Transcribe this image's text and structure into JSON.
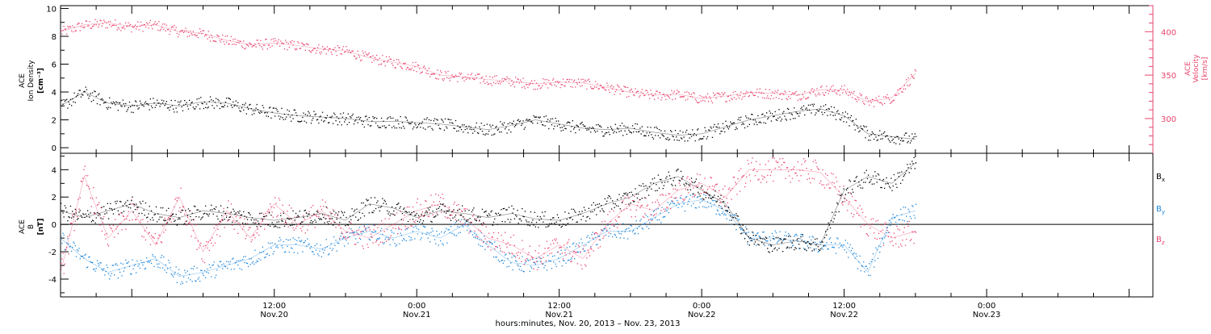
{
  "colors": {
    "density": "#000000",
    "velocity": "#e8446d",
    "bx": "#000000",
    "by": "#1b86dc",
    "bz": "#e8446d"
  },
  "chart_data": [
    {
      "type": "scatter",
      "panel": "top",
      "ylabel_left": [
        "ACE",
        "Ion Density",
        "[cm⁻³]"
      ],
      "ylabel_right": [
        "ACE",
        "Velocity",
        "[km/s]"
      ],
      "ylim_left": [
        -0.4,
        10.2
      ],
      "ylim_right": [
        260,
        430
      ],
      "left_ticks": [
        "0",
        "2",
        "4",
        "6",
        "8",
        "10"
      ],
      "left_tick_values": [
        0,
        2,
        4,
        6,
        8,
        10
      ],
      "right_ticks": [
        "300",
        "350",
        "400"
      ],
      "right_tick_values": [
        300,
        350,
        400
      ],
      "series": [
        {
          "key": "density",
          "x": [
            0,
            2,
            4,
            6,
            8,
            10,
            12,
            14,
            16,
            18,
            20,
            22,
            24,
            26,
            28,
            30,
            32,
            34,
            36,
            38,
            40,
            42,
            44,
            46,
            48,
            50,
            52,
            54,
            56,
            58,
            60,
            62,
            64,
            66,
            68,
            70,
            72
          ],
          "values": [
            3.0,
            4.0,
            3.2,
            3.0,
            3.2,
            3.0,
            3.3,
            3.2,
            2.8,
            2.5,
            2.3,
            2.2,
            2.1,
            1.9,
            1.9,
            1.8,
            1.7,
            1.5,
            1.3,
            1.6,
            2.0,
            1.7,
            1.4,
            1.3,
            1.4,
            1.1,
            0.9,
            1.0,
            1.5,
            2.0,
            2.3,
            2.6,
            2.8,
            2.3,
            1.0,
            0.8,
            0.6
          ]
        },
        {
          "key": "velocity",
          "x": [
            0,
            2,
            4,
            6,
            8,
            10,
            12,
            14,
            16,
            18,
            20,
            22,
            24,
            26,
            28,
            30,
            32,
            34,
            36,
            38,
            40,
            42,
            44,
            46,
            48,
            50,
            52,
            54,
            56,
            58,
            60,
            62,
            64,
            66,
            68,
            70,
            72
          ],
          "values": [
            400,
            408,
            410,
            406,
            408,
            400,
            398,
            390,
            385,
            387,
            384,
            380,
            378,
            370,
            365,
            360,
            350,
            348,
            345,
            343,
            340,
            342,
            341,
            336,
            330,
            327,
            328,
            323,
            326,
            330,
            329,
            327,
            333,
            333,
            319,
            324,
            352
          ]
        }
      ]
    },
    {
      "type": "scatter",
      "panel": "bottom",
      "ylabel": [
        "ACE",
        "B",
        "[nT]"
      ],
      "ylim": [
        -5.3,
        5.2
      ],
      "ticks": [
        "-4",
        "-2",
        "0",
        "2",
        "4"
      ],
      "tick_values": [
        -4,
        -2,
        0,
        2,
        4
      ],
      "series": [
        {
          "key": "bx",
          "legend": "B",
          "sub": "x",
          "x": [
            0,
            2,
            4,
            6,
            8,
            10,
            12,
            14,
            16,
            18,
            20,
            22,
            24,
            26,
            28,
            30,
            32,
            34,
            36,
            38,
            40,
            42,
            44,
            46,
            48,
            50,
            52,
            54,
            56,
            58,
            60,
            62,
            64,
            66,
            68,
            70,
            72
          ],
          "values": [
            1.0,
            0.5,
            1.0,
            1.5,
            0.8,
            0.5,
            1.0,
            0.8,
            0.5,
            0.3,
            0.5,
            0.8,
            0.3,
            1.5,
            1.2,
            0.5,
            1.0,
            0.8,
            0.5,
            0.8,
            0.4,
            0.3,
            0.8,
            1.5,
            2.0,
            3.0,
            3.5,
            2.5,
            1.5,
            -1.0,
            -1.5,
            -1.2,
            -1.5,
            2.5,
            3.5,
            3.0,
            4.5
          ]
        },
        {
          "key": "by",
          "legend": "B",
          "sub": "y",
          "x": [
            0,
            2,
            4,
            6,
            8,
            10,
            12,
            14,
            16,
            18,
            20,
            22,
            24,
            26,
            28,
            30,
            32,
            34,
            36,
            38,
            40,
            42,
            44,
            46,
            48,
            50,
            52,
            54,
            56,
            58,
            60,
            62,
            64,
            66,
            68,
            70,
            72
          ],
          "values": [
            -1.0,
            -2.5,
            -3.5,
            -3.0,
            -2.5,
            -3.8,
            -3.5,
            -3.0,
            -2.5,
            -1.5,
            -1.5,
            -1.8,
            -1.0,
            -0.5,
            -1.0,
            -0.5,
            -1.0,
            0.0,
            -1.5,
            -2.8,
            -3.0,
            -2.5,
            -1.5,
            -0.5,
            -0.5,
            0.5,
            1.5,
            1.8,
            1.0,
            -1.0,
            -1.0,
            -1.2,
            -1.5,
            -1.5,
            -3.5,
            0.5,
            1.0
          ]
        },
        {
          "key": "bz",
          "legend": "B",
          "sub": "z",
          "x": [
            0,
            2,
            4,
            6,
            8,
            10,
            12,
            14,
            16,
            18,
            20,
            22,
            24,
            26,
            28,
            30,
            32,
            34,
            36,
            38,
            40,
            42,
            44,
            46,
            48,
            50,
            52,
            54,
            56,
            58,
            60,
            62,
            64,
            66,
            68,
            70,
            72
          ],
          "values": [
            -3.5,
            3.5,
            -1.0,
            1.0,
            -1.5,
            2.0,
            -2.0,
            1.0,
            -1.0,
            1.5,
            0.0,
            1.0,
            -0.5,
            -1.0,
            0.0,
            1.0,
            1.5,
            0.5,
            -1.0,
            -1.5,
            -2.5,
            -1.5,
            -2.5,
            0.0,
            1.5,
            1.0,
            2.5,
            3.0,
            2.0,
            4.0,
            4.0,
            4.0,
            3.8,
            2.0,
            0.0,
            -1.0,
            -0.5
          ]
        }
      ]
    }
  ],
  "x_axis": {
    "labels": [
      {
        "x": 18,
        "time": "12:00",
        "date": "Nov.20"
      },
      {
        "x": 30,
        "time": "0:00",
        "date": "Nov.21"
      },
      {
        "x": 42,
        "time": "12:00",
        "date": "Nov.21"
      },
      {
        "x": 54,
        "time": "0:00",
        "date": "Nov.22"
      },
      {
        "x": 66,
        "time": "12:00",
        "date": "Nov.22"
      },
      {
        "x": 78,
        "time": "0:00",
        "date": "Nov.23"
      }
    ],
    "title": "hours:minutes, Nov. 20, 2013 – Nov. 23, 2013"
  }
}
